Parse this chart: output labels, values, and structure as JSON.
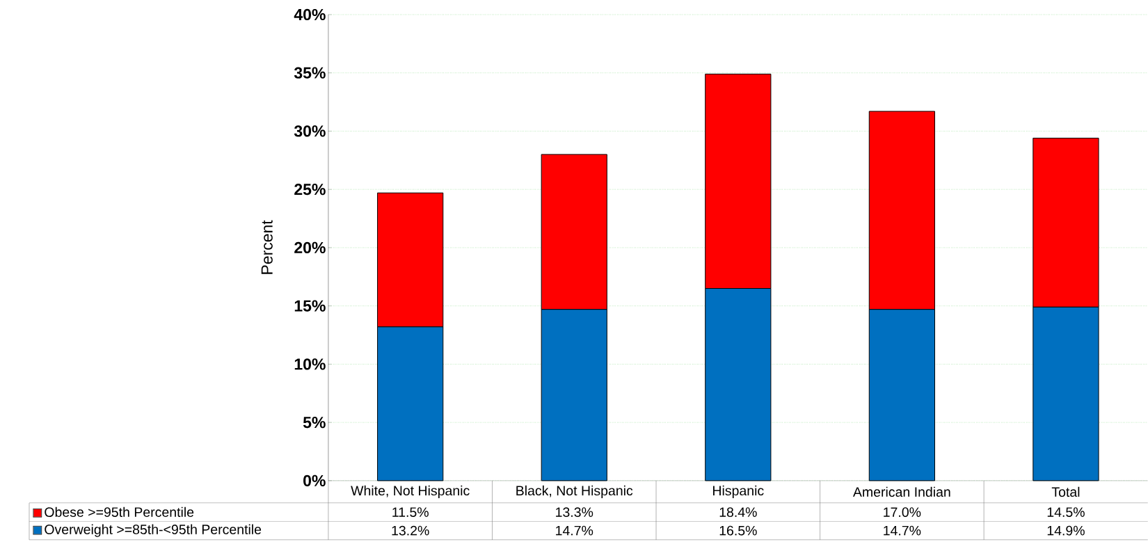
{
  "chart_data": {
    "type": "bar",
    "stacked": true,
    "ylabel": "Percent",
    "categories": [
      "White, Not Hispanic",
      "Black, Not Hispanic",
      "Hispanic",
      "American Indian",
      "Total"
    ],
    "series": [
      {
        "name": "Overweight >=85th-<95th Percentile",
        "color": "#0070c0",
        "values": [
          13.2,
          14.7,
          16.5,
          14.7,
          14.9
        ],
        "value_labels": [
          "13.2%",
          "14.7%",
          "16.5%",
          "14.7%",
          "14.9%"
        ]
      },
      {
        "name": "Obese >=95th Percentile",
        "color": "#ff0000",
        "values": [
          11.5,
          13.3,
          18.4,
          17.0,
          14.5
        ],
        "value_labels": [
          "11.5%",
          "13.3%",
          "18.4%",
          "17.0%",
          "14.5%"
        ]
      }
    ],
    "ylim": [
      0,
      40
    ],
    "yticks": [
      {
        "value": 0,
        "label": "0%"
      },
      {
        "value": 5,
        "label": "5%"
      },
      {
        "value": 10,
        "label": "10%"
      },
      {
        "value": 15,
        "label": "15%"
      },
      {
        "value": 20,
        "label": "20%"
      },
      {
        "value": 25,
        "label": "25%"
      },
      {
        "value": 30,
        "label": "30%"
      },
      {
        "value": 35,
        "label": "35%"
      },
      {
        "value": 40,
        "label": "40%"
      }
    ],
    "grid": "y",
    "legend": "bottom"
  }
}
